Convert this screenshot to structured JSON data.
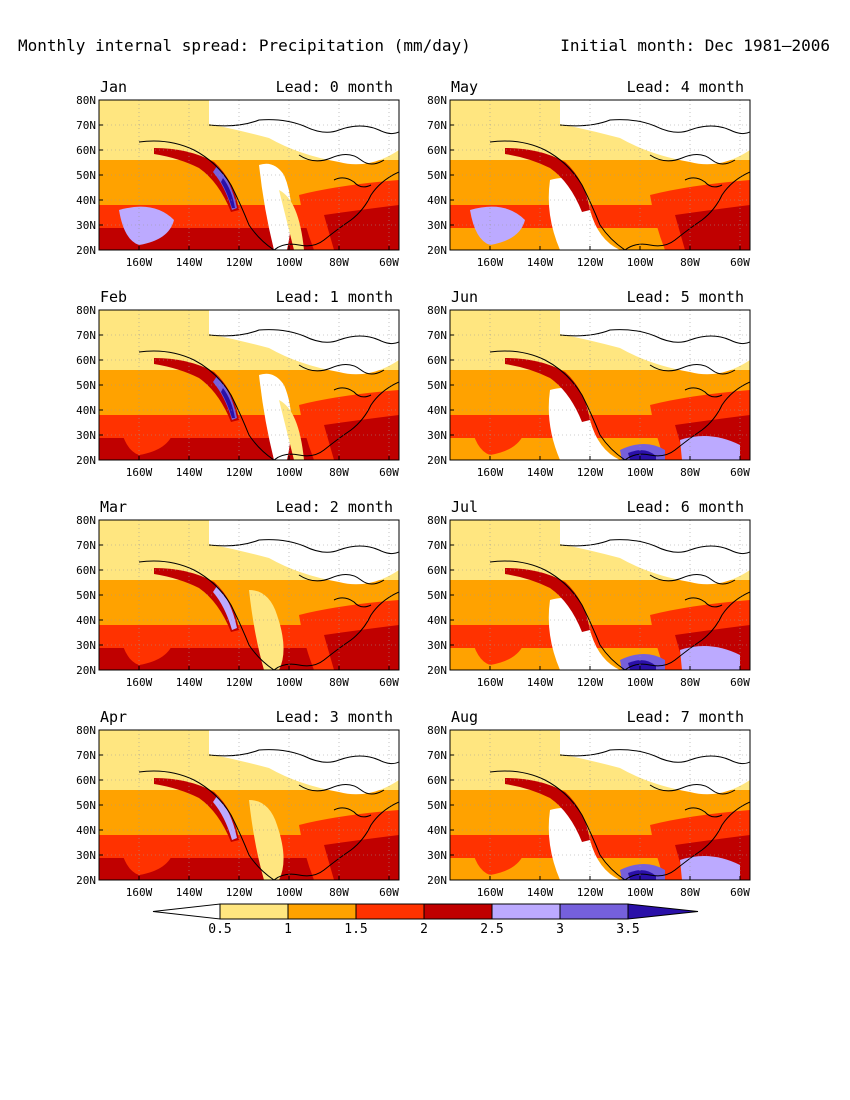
{
  "header": {
    "title": "Monthly internal spread: Precipitation (mm/day)",
    "initial": "Initial month: Dec 1981–2006"
  },
  "panels": [
    {
      "month": "Jan",
      "lead": "Lead: 0 month"
    },
    {
      "month": "May",
      "lead": "Lead: 4 month"
    },
    {
      "month": "Feb",
      "lead": "Lead: 1 month"
    },
    {
      "month": "Jun",
      "lead": "Lead: 5 month"
    },
    {
      "month": "Mar",
      "lead": "Lead: 2 month"
    },
    {
      "month": "Jul",
      "lead": "Lead: 6 month"
    },
    {
      "month": "Apr",
      "lead": "Lead: 3 month"
    },
    {
      "month": "Aug",
      "lead": "Lead: 7 month"
    }
  ],
  "axes": {
    "lat_labels": [
      "80N",
      "70N",
      "60N",
      "50N",
      "40N",
      "30N",
      "20N"
    ],
    "lon_labels": [
      "160W",
      "140W",
      "120W",
      "100W",
      "80W",
      "60W"
    ]
  },
  "colorbar": {
    "labels": [
      "0.5",
      "1",
      "1.5",
      "2",
      "2.5",
      "3",
      "3.5"
    ],
    "colors": [
      "#ffffff",
      "#ffe680",
      "#ffa200",
      "#ff3200",
      "#c00000",
      "#bcaaff",
      "#7560dc",
      "#2a10a8"
    ]
  },
  "palette": {
    "white": "#ffffff",
    "pale_yellow": "#ffe680",
    "orange": "#ffa200",
    "red_orange": "#ff3200",
    "dark_red": "#c00000",
    "lavender": "#bcaaff",
    "purple": "#7560dc",
    "dark_blue": "#2a10a8"
  }
}
